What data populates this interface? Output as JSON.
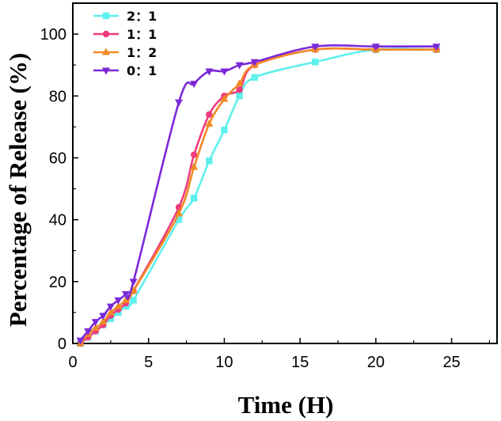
{
  "chart_data": {
    "type": "line",
    "title": "",
    "xlabel": "Time (H)",
    "ylabel": "Percentage of Release (%)",
    "xlim": [
      0,
      28
    ],
    "ylim": [
      0,
      110
    ],
    "xticks": [
      0,
      5,
      10,
      15,
      20,
      25
    ],
    "yticks": [
      0,
      20,
      40,
      60,
      80,
      100
    ],
    "xtick_labels": [
      "0",
      "5",
      "10",
      "15",
      "20",
      "25"
    ],
    "ytick_labels": [
      "0",
      "20",
      "40",
      "60",
      "80",
      "100"
    ],
    "grid": false,
    "legend_position": "top-left",
    "series": [
      {
        "name": "2：1",
        "color": "#5ef0ee",
        "marker": "square",
        "x": [
          0.5,
          1,
          1.5,
          2,
          2.5,
          3,
          3.5,
          4,
          7,
          8,
          9,
          10,
          11,
          12,
          16,
          20,
          24
        ],
        "y": [
          0,
          2,
          4,
          6,
          8,
          10,
          12,
          14,
          40,
          47,
          59,
          69,
          80,
          86,
          91,
          95,
          95
        ]
      },
      {
        "name": "1：1",
        "color": "#ef3b7d",
        "marker": "circle",
        "x": [
          0.5,
          1,
          1.5,
          2,
          2.5,
          3,
          3.5,
          4,
          7,
          8,
          9,
          10,
          11,
          12,
          16,
          20,
          24
        ],
        "y": [
          0,
          2,
          4,
          6,
          9,
          11,
          13,
          17,
          44,
          61,
          74,
          80,
          82,
          90,
          95,
          95,
          95
        ]
      },
      {
        "name": "1：2",
        "color": "#f08a24",
        "marker": "triangle-up",
        "x": [
          0.5,
          1,
          1.5,
          2,
          2.5,
          3,
          3.5,
          4,
          7,
          8,
          9,
          10,
          11,
          12,
          16,
          20,
          24
        ],
        "y": [
          0,
          3,
          5,
          7,
          10,
          12,
          14,
          17,
          42,
          57,
          71,
          79,
          84,
          90,
          95,
          95,
          95
        ]
      },
      {
        "name": "0：1",
        "color": "#7b28d8",
        "marker": "triangle-down",
        "x": [
          0.5,
          1,
          1.5,
          2,
          2.5,
          3,
          3.5,
          4,
          7,
          8,
          9,
          10,
          11,
          12,
          16,
          20,
          24
        ],
        "y": [
          1,
          4,
          7,
          9,
          12,
          14,
          16,
          20,
          78,
          84,
          88,
          88,
          90,
          91,
          96,
          96,
          96
        ]
      }
    ]
  }
}
